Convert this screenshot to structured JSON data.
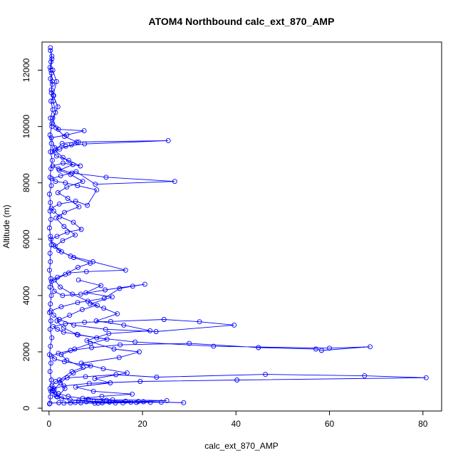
{
  "chart_data": {
    "type": "line",
    "title": "ATOM4 Northbound calc_ext_870_AMP",
    "xlabel": "calc_ext_870_AMP",
    "ylabel": "Altitude (m)",
    "xlim": [
      -1.5,
      84
    ],
    "ylim": [
      -100,
      13000
    ],
    "xticks": [
      0,
      20,
      40,
      60,
      80
    ],
    "yticks": [
      0,
      2000,
      4000,
      6000,
      8000,
      10000,
      12000
    ],
    "marker": "open-circle",
    "grid": false,
    "legend": "none",
    "colors": {
      "series": "#0000ff",
      "axis": "#000000",
      "background": "#ffffff"
    },
    "series": [
      {
        "points": [
          [
            0.2,
            180
          ],
          [
            2.1,
            190
          ],
          [
            5.6,
            200
          ],
          [
            9.8,
            175
          ],
          [
            14.2,
            185
          ],
          [
            18.7,
            200
          ],
          [
            24.0,
            210
          ],
          [
            28.8,
            195
          ],
          [
            20.2,
            230
          ],
          [
            16.4,
            250
          ],
          [
            12.3,
            280
          ],
          [
            8.4,
            320
          ],
          [
            4.1,
            420
          ],
          [
            2.0,
            520
          ],
          [
            1.1,
            650
          ],
          [
            0.6,
            800
          ],
          [
            1.4,
            950
          ],
          [
            3.9,
            1080
          ],
          [
            7.8,
            1120
          ],
          [
            14.3,
            1190
          ],
          [
            23.0,
            1100
          ],
          [
            46.3,
            1200
          ],
          [
            67.5,
            1150
          ],
          [
            80.7,
            1080
          ],
          [
            40.2,
            1000
          ],
          [
            19.5,
            950
          ],
          [
            8.6,
            880
          ],
          [
            3.2,
            790
          ],
          [
            1.0,
            700
          ],
          [
            0.4,
            600
          ],
          [
            1.3,
            480
          ],
          [
            2.7,
            350
          ],
          [
            6.3,
            260
          ],
          [
            11.4,
            190
          ],
          [
            17.5,
            210
          ],
          [
            9.6,
            240
          ],
          [
            4.5,
            300
          ],
          [
            1.6,
            420
          ],
          [
            0.8,
            620
          ],
          [
            2.4,
            900
          ],
          [
            5.2,
            1250
          ],
          [
            8.9,
            1500
          ],
          [
            3.3,
            1650
          ],
          [
            1.2,
            1750
          ],
          [
            0.5,
            1850
          ],
          [
            2.0,
            1950
          ],
          [
            4.6,
            2050
          ],
          [
            9.1,
            2150
          ],
          [
            15.2,
            2250
          ],
          [
            30.0,
            2300
          ],
          [
            44.8,
            2150
          ],
          [
            57.1,
            2100
          ],
          [
            58.3,
            2050
          ],
          [
            68.7,
            2180
          ],
          [
            60.0,
            2130
          ],
          [
            35.2,
            2200
          ],
          [
            18.4,
            2350
          ],
          [
            10.2,
            2500
          ],
          [
            6.0,
            2620
          ],
          [
            3.1,
            2700
          ],
          [
            1.8,
            2800
          ],
          [
            0.9,
            2900
          ],
          [
            3.5,
            3000
          ],
          [
            7.6,
            3050
          ],
          [
            13.2,
            3080
          ],
          [
            24.6,
            3150
          ],
          [
            32.2,
            3070
          ],
          [
            39.6,
            2950
          ],
          [
            22.9,
            2720
          ],
          [
            12.1,
            2800
          ],
          [
            5.3,
            2950
          ],
          [
            2.2,
            3150
          ],
          [
            1.0,
            3300
          ],
          [
            0.4,
            3450
          ],
          [
            2.6,
            3600
          ],
          [
            6.1,
            3750
          ],
          [
            11.8,
            3900
          ],
          [
            15.1,
            4250
          ],
          [
            17.9,
            4330
          ],
          [
            20.5,
            4400
          ],
          [
            12.0,
            4200
          ],
          [
            6.8,
            4050
          ],
          [
            2.9,
            4000
          ],
          [
            1.1,
            4150
          ],
          [
            0.5,
            4500
          ],
          [
            1.8,
            4650
          ],
          [
            4.2,
            4800
          ],
          [
            8.0,
            4850
          ],
          [
            16.4,
            4900
          ],
          [
            9.4,
            5200
          ],
          [
            4.6,
            5400
          ],
          [
            2.1,
            5600
          ],
          [
            0.9,
            5800
          ],
          [
            0.4,
            6000
          ],
          [
            1.7,
            6100
          ],
          [
            3.9,
            6250
          ],
          [
            6.9,
            6350
          ],
          [
            5.2,
            6600
          ],
          [
            2.3,
            6800
          ],
          [
            1.0,
            7000
          ],
          [
            0.5,
            7100
          ],
          [
            2.2,
            7250
          ],
          [
            5.7,
            7350
          ],
          [
            8.2,
            7200
          ],
          [
            10.2,
            7750
          ],
          [
            6.1,
            7900
          ],
          [
            3.5,
            8000
          ],
          [
            1.4,
            8050
          ],
          [
            0.6,
            8150
          ],
          [
            2.5,
            8250
          ],
          [
            5.8,
            8400
          ],
          [
            9.9,
            7950
          ],
          [
            26.9,
            8050
          ],
          [
            12.2,
            8200
          ],
          [
            4.9,
            8350
          ],
          [
            2.0,
            8500
          ],
          [
            0.8,
            8600
          ],
          [
            3.0,
            8700
          ],
          [
            6.7,
            8600
          ],
          [
            4.2,
            8800
          ],
          [
            1.6,
            8950
          ],
          [
            0.7,
            9100
          ],
          [
            2.3,
            9200
          ],
          [
            4.8,
            9350
          ],
          [
            6.3,
            9450
          ],
          [
            25.5,
            9500
          ],
          [
            7.6,
            9380
          ],
          [
            3.6,
            9300
          ],
          [
            1.2,
            9250
          ],
          [
            0.5,
            9600
          ],
          [
            3.8,
            9700
          ],
          [
            7.5,
            9850
          ],
          [
            2.0,
            9900
          ],
          [
            0.6,
            10100
          ],
          [
            1.4,
            10500
          ],
          [
            0.9,
            10900
          ],
          [
            0.5,
            11200
          ],
          [
            0.7,
            11600
          ],
          [
            0.4,
            12000
          ],
          [
            0.6,
            12400
          ],
          [
            0.3,
            12800
          ]
        ]
      },
      {
        "points": [
          [
            0.1,
            150
          ],
          [
            0.3,
            400
          ],
          [
            0.2,
            700
          ],
          [
            0.5,
            1000
          ],
          [
            0.2,
            1300
          ],
          [
            0.4,
            1600
          ],
          [
            0.1,
            1900
          ],
          [
            0.3,
            2200
          ],
          [
            0.6,
            2500
          ],
          [
            0.2,
            2800
          ],
          [
            0.4,
            3100
          ],
          [
            0.1,
            3400
          ],
          [
            0.3,
            3700
          ],
          [
            0.5,
            4000
          ],
          [
            0.2,
            4300
          ],
          [
            0.4,
            4600
          ],
          [
            0.1,
            4900
          ],
          [
            0.3,
            5200
          ],
          [
            0.2,
            5500
          ],
          [
            0.5,
            5800
          ],
          [
            0.3,
            6100
          ],
          [
            0.1,
            6400
          ],
          [
            0.4,
            6700
          ],
          [
            0.2,
            7000
          ],
          [
            0.3,
            7300
          ],
          [
            0.1,
            7600
          ],
          [
            0.5,
            7900
          ],
          [
            0.2,
            8200
          ],
          [
            0.4,
            8500
          ],
          [
            0.7,
            8800
          ],
          [
            0.3,
            9100
          ],
          [
            0.5,
            9400
          ],
          [
            0.2,
            9700
          ],
          [
            0.6,
            10000
          ],
          [
            0.3,
            10300
          ],
          [
            0.8,
            10600
          ],
          [
            0.4,
            10900
          ],
          [
            1.0,
            11100
          ],
          [
            0.5,
            11300
          ],
          [
            0.7,
            11500
          ],
          [
            0.3,
            11700
          ],
          [
            0.5,
            11900
          ],
          [
            0.2,
            12100
          ],
          [
            0.4,
            12300
          ],
          [
            0.6,
            12500
          ],
          [
            0.3,
            12700
          ]
        ]
      },
      {
        "points": [
          [
            1.8,
            400
          ],
          [
            3.4,
            700
          ],
          [
            2.2,
            1000
          ],
          [
            4.9,
            1300
          ],
          [
            7.3,
            1450
          ],
          [
            3.8,
            1700
          ],
          [
            2.6,
            1900
          ],
          [
            5.5,
            2100
          ],
          [
            8.9,
            2300
          ],
          [
            12.4,
            2450
          ],
          [
            6.2,
            2600
          ],
          [
            3.1,
            2850
          ],
          [
            1.7,
            3100
          ],
          [
            4.4,
            3300
          ],
          [
            7.1,
            3500
          ],
          [
            10.3,
            3650
          ],
          [
            8.3,
            3800
          ],
          [
            5.0,
            4050
          ],
          [
            2.4,
            4300
          ],
          [
            1.2,
            4550
          ],
          [
            3.5,
            4750
          ],
          [
            6.2,
            5000
          ],
          [
            8.8,
            5150
          ],
          [
            5.3,
            5350
          ],
          [
            2.7,
            5550
          ],
          [
            1.3,
            5750
          ],
          [
            2.9,
            5950
          ],
          [
            5.6,
            6150
          ],
          [
            3.2,
            6450
          ],
          [
            1.5,
            6750
          ],
          [
            3.3,
            6950
          ],
          [
            6.4,
            7150
          ],
          [
            4.0,
            7450
          ],
          [
            1.9,
            7650
          ],
          [
            3.8,
            7850
          ],
          [
            7.2,
            8050
          ],
          [
            4.6,
            8300
          ],
          [
            2.2,
            8450
          ],
          [
            5.1,
            8650
          ],
          [
            3.0,
            8900
          ],
          [
            1.3,
            9150
          ],
          [
            2.8,
            9400
          ],
          [
            5.9,
            9450
          ],
          [
            3.3,
            9650
          ],
          [
            1.5,
            9950
          ],
          [
            0.8,
            10300
          ],
          [
            1.9,
            10700
          ],
          [
            0.9,
            11100
          ],
          [
            1.6,
            11600
          ],
          [
            0.8,
            12000
          ]
        ]
      },
      {
        "points": [
          [
            3.2,
            180
          ],
          [
            4.6,
            185
          ],
          [
            6.8,
            190
          ],
          [
            10.5,
            178
          ],
          [
            15.8,
            188
          ],
          [
            21.7,
            205
          ],
          [
            12.9,
            215
          ],
          [
            8.0,
            225
          ],
          [
            19.1,
            240
          ],
          [
            25.2,
            270
          ],
          [
            13.6,
            300
          ],
          [
            7.2,
            350
          ],
          [
            11.3,
            420
          ],
          [
            17.8,
            500
          ],
          [
            9.5,
            600
          ],
          [
            5.7,
            750
          ],
          [
            13.1,
            900
          ],
          [
            9.8,
            1050
          ],
          [
            16.7,
            1250
          ],
          [
            11.6,
            1400
          ],
          [
            6.9,
            1600
          ],
          [
            15.0,
            1800
          ],
          [
            19.3,
            2000
          ],
          [
            13.9,
            2100
          ],
          [
            8.1,
            2400
          ],
          [
            12.8,
            2650
          ],
          [
            21.6,
            2750
          ],
          [
            16.0,
            2950
          ],
          [
            10.1,
            3100
          ],
          [
            14.6,
            3350
          ],
          [
            11.7,
            3550
          ],
          [
            8.8,
            3700
          ],
          [
            13.5,
            3950
          ],
          [
            7.9,
            4100
          ],
          [
            11.1,
            4350
          ],
          [
            6.3,
            4550
          ]
        ]
      }
    ]
  }
}
